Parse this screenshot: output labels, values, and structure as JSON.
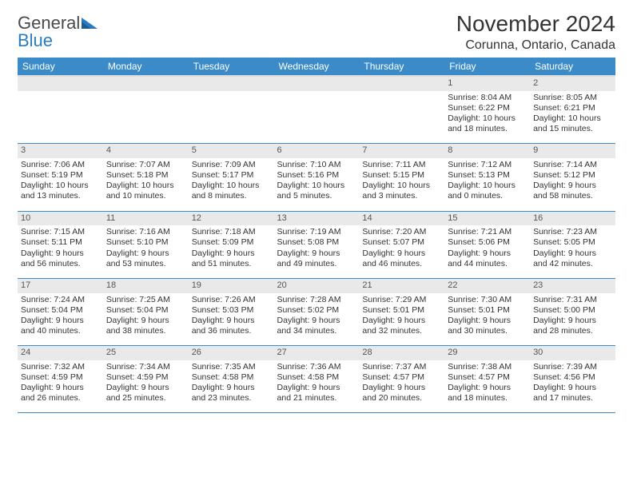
{
  "logo": {
    "text1": "General",
    "text2": "Blue"
  },
  "title": "November 2024",
  "location": "Corunna, Ontario, Canada",
  "colors": {
    "header_bg": "#3b8bc9",
    "header_text": "#ffffff",
    "daynum_bg": "#e9e9e9",
    "border": "#3b8bc9",
    "body_text": "#333333",
    "logo_gray": "#4a4a4a",
    "logo_blue": "#2a7bbf"
  },
  "weekdays": [
    "Sunday",
    "Monday",
    "Tuesday",
    "Wednesday",
    "Thursday",
    "Friday",
    "Saturday"
  ],
  "weeks": [
    {
      "nums": [
        "",
        "",
        "",
        "",
        "",
        "1",
        "2"
      ],
      "cells": [
        null,
        null,
        null,
        null,
        null,
        {
          "sunrise": "Sunrise: 8:04 AM",
          "sunset": "Sunset: 6:22 PM",
          "daylight": "Daylight: 10 hours and 18 minutes."
        },
        {
          "sunrise": "Sunrise: 8:05 AM",
          "sunset": "Sunset: 6:21 PM",
          "daylight": "Daylight: 10 hours and 15 minutes."
        }
      ]
    },
    {
      "nums": [
        "3",
        "4",
        "5",
        "6",
        "7",
        "8",
        "9"
      ],
      "cells": [
        {
          "sunrise": "Sunrise: 7:06 AM",
          "sunset": "Sunset: 5:19 PM",
          "daylight": "Daylight: 10 hours and 13 minutes."
        },
        {
          "sunrise": "Sunrise: 7:07 AM",
          "sunset": "Sunset: 5:18 PM",
          "daylight": "Daylight: 10 hours and 10 minutes."
        },
        {
          "sunrise": "Sunrise: 7:09 AM",
          "sunset": "Sunset: 5:17 PM",
          "daylight": "Daylight: 10 hours and 8 minutes."
        },
        {
          "sunrise": "Sunrise: 7:10 AM",
          "sunset": "Sunset: 5:16 PM",
          "daylight": "Daylight: 10 hours and 5 minutes."
        },
        {
          "sunrise": "Sunrise: 7:11 AM",
          "sunset": "Sunset: 5:15 PM",
          "daylight": "Daylight: 10 hours and 3 minutes."
        },
        {
          "sunrise": "Sunrise: 7:12 AM",
          "sunset": "Sunset: 5:13 PM",
          "daylight": "Daylight: 10 hours and 0 minutes."
        },
        {
          "sunrise": "Sunrise: 7:14 AM",
          "sunset": "Sunset: 5:12 PM",
          "daylight": "Daylight: 9 hours and 58 minutes."
        }
      ]
    },
    {
      "nums": [
        "10",
        "11",
        "12",
        "13",
        "14",
        "15",
        "16"
      ],
      "cells": [
        {
          "sunrise": "Sunrise: 7:15 AM",
          "sunset": "Sunset: 5:11 PM",
          "daylight": "Daylight: 9 hours and 56 minutes."
        },
        {
          "sunrise": "Sunrise: 7:16 AM",
          "sunset": "Sunset: 5:10 PM",
          "daylight": "Daylight: 9 hours and 53 minutes."
        },
        {
          "sunrise": "Sunrise: 7:18 AM",
          "sunset": "Sunset: 5:09 PM",
          "daylight": "Daylight: 9 hours and 51 minutes."
        },
        {
          "sunrise": "Sunrise: 7:19 AM",
          "sunset": "Sunset: 5:08 PM",
          "daylight": "Daylight: 9 hours and 49 minutes."
        },
        {
          "sunrise": "Sunrise: 7:20 AM",
          "sunset": "Sunset: 5:07 PM",
          "daylight": "Daylight: 9 hours and 46 minutes."
        },
        {
          "sunrise": "Sunrise: 7:21 AM",
          "sunset": "Sunset: 5:06 PM",
          "daylight": "Daylight: 9 hours and 44 minutes."
        },
        {
          "sunrise": "Sunrise: 7:23 AM",
          "sunset": "Sunset: 5:05 PM",
          "daylight": "Daylight: 9 hours and 42 minutes."
        }
      ]
    },
    {
      "nums": [
        "17",
        "18",
        "19",
        "20",
        "21",
        "22",
        "23"
      ],
      "cells": [
        {
          "sunrise": "Sunrise: 7:24 AM",
          "sunset": "Sunset: 5:04 PM",
          "daylight": "Daylight: 9 hours and 40 minutes."
        },
        {
          "sunrise": "Sunrise: 7:25 AM",
          "sunset": "Sunset: 5:04 PM",
          "daylight": "Daylight: 9 hours and 38 minutes."
        },
        {
          "sunrise": "Sunrise: 7:26 AM",
          "sunset": "Sunset: 5:03 PM",
          "daylight": "Daylight: 9 hours and 36 minutes."
        },
        {
          "sunrise": "Sunrise: 7:28 AM",
          "sunset": "Sunset: 5:02 PM",
          "daylight": "Daylight: 9 hours and 34 minutes."
        },
        {
          "sunrise": "Sunrise: 7:29 AM",
          "sunset": "Sunset: 5:01 PM",
          "daylight": "Daylight: 9 hours and 32 minutes."
        },
        {
          "sunrise": "Sunrise: 7:30 AM",
          "sunset": "Sunset: 5:01 PM",
          "daylight": "Daylight: 9 hours and 30 minutes."
        },
        {
          "sunrise": "Sunrise: 7:31 AM",
          "sunset": "Sunset: 5:00 PM",
          "daylight": "Daylight: 9 hours and 28 minutes."
        }
      ]
    },
    {
      "nums": [
        "24",
        "25",
        "26",
        "27",
        "28",
        "29",
        "30"
      ],
      "cells": [
        {
          "sunrise": "Sunrise: 7:32 AM",
          "sunset": "Sunset: 4:59 PM",
          "daylight": "Daylight: 9 hours and 26 minutes."
        },
        {
          "sunrise": "Sunrise: 7:34 AM",
          "sunset": "Sunset: 4:59 PM",
          "daylight": "Daylight: 9 hours and 25 minutes."
        },
        {
          "sunrise": "Sunrise: 7:35 AM",
          "sunset": "Sunset: 4:58 PM",
          "daylight": "Daylight: 9 hours and 23 minutes."
        },
        {
          "sunrise": "Sunrise: 7:36 AM",
          "sunset": "Sunset: 4:58 PM",
          "daylight": "Daylight: 9 hours and 21 minutes."
        },
        {
          "sunrise": "Sunrise: 7:37 AM",
          "sunset": "Sunset: 4:57 PM",
          "daylight": "Daylight: 9 hours and 20 minutes."
        },
        {
          "sunrise": "Sunrise: 7:38 AM",
          "sunset": "Sunset: 4:57 PM",
          "daylight": "Daylight: 9 hours and 18 minutes."
        },
        {
          "sunrise": "Sunrise: 7:39 AM",
          "sunset": "Sunset: 4:56 PM",
          "daylight": "Daylight: 9 hours and 17 minutes."
        }
      ]
    }
  ]
}
